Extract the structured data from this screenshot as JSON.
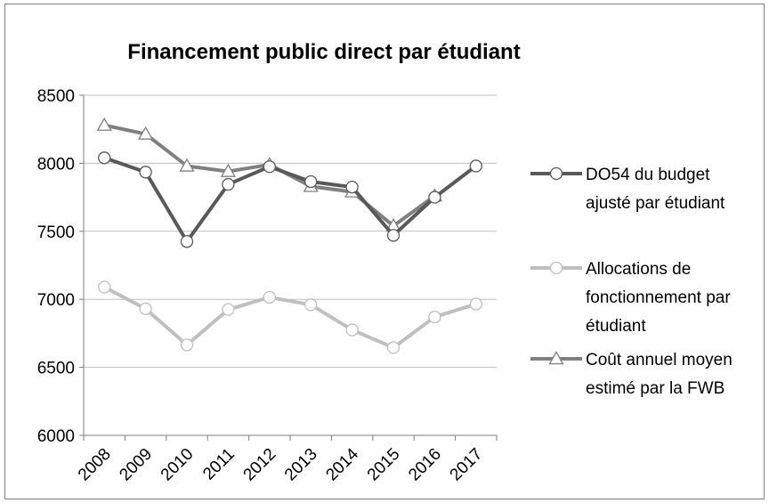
{
  "chart_data": {
    "type": "line",
    "title": "Financement public direct par étudiant",
    "xlabel": "",
    "ylabel": "",
    "categories": [
      "2008",
      "2009",
      "2010",
      "2011",
      "2012",
      "2013",
      "2014",
      "2015",
      "2016",
      "2017"
    ],
    "ylim": [
      6000,
      8500
    ],
    "yticks": [
      6000,
      6500,
      7000,
      7500,
      8000,
      8500
    ],
    "grid": true,
    "legend_position": "right",
    "series": [
      {
        "name": "DO54 du budget ajusté par étudiant",
        "legend_lines": [
          "DO54 du budget",
          "ajusté par étudiant"
        ],
        "marker": "circle",
        "color": "#595959",
        "values": [
          8040,
          7935,
          7425,
          7845,
          7975,
          7865,
          7825,
          7470,
          7750,
          7980
        ]
      },
      {
        "name": "Allocations de fonctionnement par étudiant",
        "legend_lines": [
          "Allocations de",
          "fonctionnement par",
          "étudiant"
        ],
        "marker": "circle",
        "color": "#bfbfbf",
        "values": [
          7090,
          6930,
          6665,
          6925,
          7015,
          6960,
          6775,
          6645,
          6870,
          6965
        ]
      },
      {
        "name": "Coût annuel moyen estimé par la FWB",
        "legend_lines": [
          "Coût annuel moyen",
          "estimé par la FWB"
        ],
        "marker": "triangle",
        "color": "#808080",
        "values": [
          8280,
          8215,
          7980,
          7940,
          7990,
          7830,
          7790,
          7540,
          7760,
          null
        ]
      }
    ]
  }
}
